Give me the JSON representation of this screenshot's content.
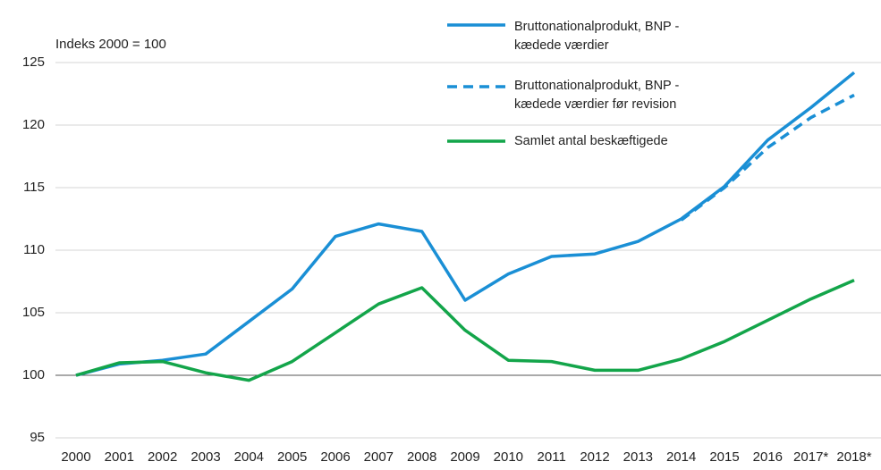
{
  "chart_data": {
    "type": "line",
    "annotation": "Indeks 2000 = 100",
    "categories": [
      "2000",
      "2001",
      "2002",
      "2003",
      "2004",
      "2005",
      "2006",
      "2007",
      "2008",
      "2009",
      "2010",
      "2011",
      "2012",
      "2013",
      "2014",
      "2015",
      "2016",
      "2017*",
      "2018*"
    ],
    "series": [
      {
        "name": "Bruttonationalprodukt, BNP - kædede værdier",
        "color": "#1a8fd5",
        "dashed": false,
        "values": [
          100,
          100.9,
          101.2,
          101.7,
          104.3,
          106.9,
          111.1,
          112.1,
          111.5,
          106.0,
          108.1,
          109.5,
          109.7,
          110.7,
          112.5,
          115.1,
          118.8,
          121.4,
          124.2
        ]
      },
      {
        "name": "Bruttonationalprodukt, BNP - kædede værdier før revision",
        "color": "#1a8fd5",
        "dashed": true,
        "values": [
          null,
          null,
          null,
          null,
          null,
          null,
          null,
          null,
          null,
          null,
          null,
          null,
          null,
          null,
          112.4,
          115.0,
          118.2,
          120.6,
          122.4
        ]
      },
      {
        "name": "Samlet antal beskæftigede",
        "color": "#13a54a",
        "dashed": false,
        "values": [
          100,
          101.0,
          101.1,
          100.2,
          99.6,
          101.1,
          103.4,
          105.7,
          107.0,
          103.6,
          101.2,
          101.1,
          100.4,
          100.4,
          101.3,
          102.7,
          104.4,
          106.1,
          107.6
        ]
      }
    ],
    "ylim": [
      95,
      125
    ],
    "yticks": [
      95,
      100,
      105,
      110,
      115,
      120,
      125
    ],
    "grid": true,
    "legend": "upper right"
  }
}
